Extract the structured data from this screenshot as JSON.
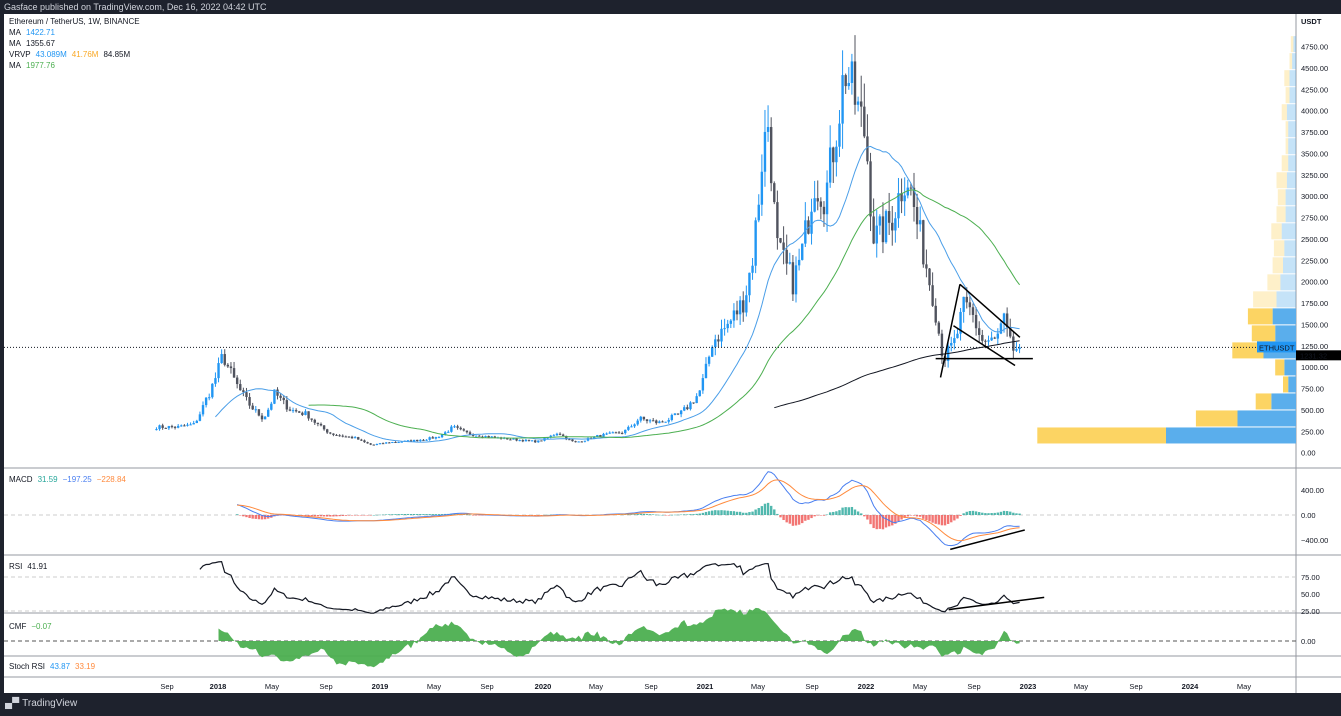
{
  "header": {
    "published": "Gasface published on TradingView.com, Dec 16, 2022 04:42 UTC"
  },
  "legend": {
    "symbol": "Ethereum / TetherUS, 1W, BINANCE",
    "ma1": {
      "label": "MA",
      "value": "1422.71",
      "color": "#2196f3"
    },
    "ma2": {
      "label": "MA",
      "value": "1355.67",
      "color": "#131722"
    },
    "vrvp": {
      "label": "VRVP",
      "up": "43.089M",
      "down": "41.76M",
      "total": "84.85M"
    },
    "ma3": {
      "label": "MA",
      "value": "1977.76",
      "color": "#4caf50"
    },
    "macd": {
      "label": "MACD",
      "hist": "31.59",
      "macd": "−197.25",
      "signal": "−228.84"
    },
    "rsi": {
      "label": "RSI",
      "value": "41.91"
    },
    "cmf": {
      "label": "CMF",
      "value": "−0.07"
    },
    "stoch": {
      "label": "Stoch RSI",
      "k": "43.87",
      "d": "33.19"
    }
  },
  "price_axis": {
    "unit": "USDT",
    "ticks": [
      "4750.00",
      "4500.00",
      "4250.00",
      "4000.00",
      "3750.00",
      "3500.00",
      "3250.00",
      "3000.00",
      "2750.00",
      "2500.00",
      "2250.00",
      "2000.00",
      "1750.00",
      "1500.00",
      "1250.00",
      "1000.00",
      "750.00",
      "500.00",
      "250.00",
      "0.00"
    ],
    "last_price": "1231.32",
    "symbol_tag": "ETHUSDT"
  },
  "macd_axis": [
    "400.00",
    "0.00",
    "−400.00"
  ],
  "rsi_axis": [
    "75.00",
    "50.00",
    "25.00"
  ],
  "cmf_axis": [
    "0.00"
  ],
  "time_axis": [
    "Sep",
    "2018",
    "May",
    "Sep",
    "2019",
    "May",
    "Sep",
    "2020",
    "May",
    "Sep",
    "2021",
    "May",
    "Sep",
    "2022",
    "May",
    "Sep",
    "2023",
    "May",
    "Sep",
    "2024",
    "May"
  ],
  "footer": {
    "brand": "TradingView"
  },
  "colors": {
    "up": "#2196f3",
    "down": "#50535e",
    "ma_fast": "#4a9ee8",
    "ma_slow": "#4caf50",
    "ma_200": "#131722",
    "vrvp_up": "#5aaeec",
    "vrvp_down": "#fcd463",
    "macd": "#4a7ff0",
    "signal": "#ff8a3d",
    "cmf": "#4caf50"
  },
  "chart_data": {
    "type": "candlestick",
    "title": "Ethereum / TetherUS, 1W, BINANCE",
    "ylim": [
      0,
      4900
    ],
    "close_anchors": [
      [
        "2017-08",
        300
      ],
      [
        "2017-10",
        300
      ],
      [
        "2017-11",
        330
      ],
      [
        "2017-12",
        600
      ],
      [
        "2018-01",
        1150
      ],
      [
        "2018-02",
        850
      ],
      [
        "2018-03",
        550
      ],
      [
        "2018-04",
        400
      ],
      [
        "2018-05",
        700
      ],
      [
        "2018-06",
        500
      ],
      [
        "2018-07",
        450
      ],
      [
        "2018-09",
        220
      ],
      [
        "2018-11",
        170
      ],
      [
        "2018-12",
        90
      ],
      [
        "2019-01",
        120
      ],
      [
        "2019-03",
        140
      ],
      [
        "2019-05",
        180
      ],
      [
        "2019-06",
        300
      ],
      [
        "2019-07",
        220
      ],
      [
        "2019-09",
        180
      ],
      [
        "2019-11",
        150
      ],
      [
        "2019-12",
        130
      ],
      [
        "2020-02",
        240
      ],
      [
        "2020-03",
        120
      ],
      [
        "2020-05",
        200
      ],
      [
        "2020-07",
        240
      ],
      [
        "2020-08",
        400
      ],
      [
        "2020-09",
        350
      ],
      [
        "2020-11",
        450
      ],
      [
        "2020-12",
        700
      ],
      [
        "2021-01",
        1300
      ],
      [
        "2021-02",
        1500
      ],
      [
        "2021-03",
        1800
      ],
      [
        "2021-04",
        2300
      ],
      [
        "2021-05a",
        3500
      ],
      [
        "2021-05b",
        3900
      ],
      [
        "2021-06",
        2400
      ],
      [
        "2021-07",
        2000
      ],
      [
        "2021-08a",
        2300
      ],
      [
        "2021-09",
        3200
      ],
      [
        "2021-10a",
        3000
      ],
      [
        "2021-10b",
        3600
      ],
      [
        "2021-11",
        4500
      ],
      [
        "2021-12a",
        4200
      ],
      [
        "2022-01",
        3700
      ],
      [
        "2022-01b",
        2500
      ],
      [
        "2022-02",
        2700
      ],
      [
        "2022-04",
        3300
      ],
      [
        "2022-05",
        2400
      ],
      [
        "2022-06a",
        1800
      ],
      [
        "2022-06b",
        1100
      ],
      [
        "2022-07",
        1300
      ],
      [
        "2022-08",
        1700
      ],
      [
        "2022-08b",
        1650
      ],
      [
        "2022-09",
        1300
      ],
      [
        "2022-10",
        1300
      ],
      [
        "2022-11a",
        1550
      ],
      [
        "2022-11b",
        1200
      ],
      [
        "2022-12",
        1231.32
      ]
    ],
    "anchor_years": [
      2017.62,
      2017.75,
      2017.85,
      2017.92,
      2018.03,
      2018.1,
      2018.2,
      2018.28,
      2018.35,
      2018.45,
      2018.55,
      2018.7,
      2018.85,
      2018.95,
      2019.05,
      2019.2,
      2019.35,
      2019.45,
      2019.55,
      2019.7,
      2019.85,
      2019.97,
      2020.1,
      2020.2,
      2020.35,
      2020.5,
      2020.6,
      2020.72,
      2020.85,
      2020.97,
      2021.05,
      2021.15,
      2021.25,
      2021.3,
      2021.36,
      2021.4,
      2021.45,
      2021.55,
      2021.6,
      2021.68,
      2021.75,
      2021.8,
      2021.87,
      2021.92,
      2022.0,
      2022.05,
      2022.15,
      2022.25,
      2022.35,
      2022.42,
      2022.48,
      2022.55,
      2022.6,
      2022.65,
      2022.72,
      2022.8,
      2022.85,
      2022.9,
      2022.96
    ],
    "vrvp_bins": {
      "from_price": 102,
      "step": 199,
      "value_area_bins": 8,
      "down_pct": [
        99,
        32,
        12,
        4,
        7,
        24,
        18,
        19,
        18,
        10,
        8,
        8,
        8,
        7,
        6,
        8,
        5,
        2,
        2,
        4,
        3,
        4,
        2,
        2
      ],
      "up_pct": [
        100,
        45,
        19,
        6,
        9,
        25,
        16,
        18,
        15,
        12,
        10,
        9,
        11,
        8,
        8,
        7,
        6,
        6,
        6,
        7,
        5,
        5,
        3,
        2
      ]
    },
    "drawings": [
      {
        "panel": "price",
        "from": [
          2022.46,
          880
        ],
        "to": [
          2022.58,
          1970
        ]
      },
      {
        "panel": "price",
        "from": [
          2022.58,
          1970
        ],
        "to": [
          2022.95,
          1350
        ]
      },
      {
        "panel": "price",
        "from": [
          2022.54,
          1485
        ],
        "to": [
          2022.92,
          1020
        ]
      },
      {
        "panel": "price",
        "from": [
          2022.43,
          1100
        ],
        "to": [
          2023.03,
          1100
        ]
      },
      {
        "panel": "macd",
        "from": [
          2022.52,
          -550
        ],
        "to": [
          2022.98,
          -240
        ]
      },
      {
        "panel": "rsi",
        "from": [
          2022.51,
          27
        ],
        "to": [
          2023.1,
          45
        ]
      }
    ]
  }
}
